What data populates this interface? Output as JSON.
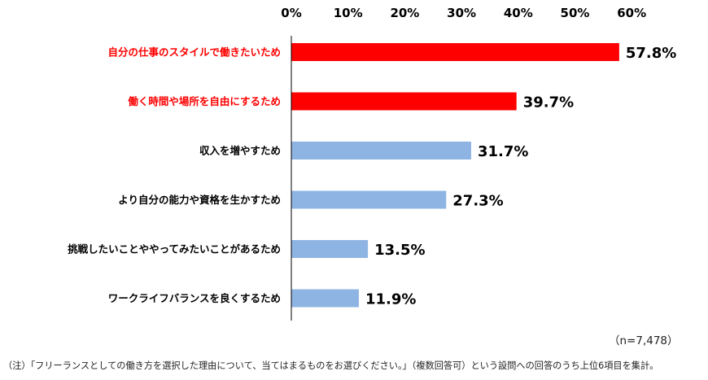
{
  "chart_data": {
    "type": "bar",
    "orientation": "horizontal",
    "categories": [
      "自分の仕事のスタイルで働きたいため",
      "働く時間や場所を自由にするため",
      "収入を増やすため",
      "より自分の能力や資格を生かすため",
      "挑戦したいことややってみたいことがあるため",
      "ワークライフバランスを良くするため"
    ],
    "values": [
      57.8,
      39.7,
      31.7,
      27.3,
      13.5,
      11.9
    ],
    "value_labels": [
      "57.8%",
      "39.7%",
      "31.7%",
      "27.3%",
      "13.5%",
      "11.9%"
    ],
    "highlighted": [
      true,
      true,
      false,
      false,
      false,
      false
    ],
    "xlim": [
      0,
      60
    ],
    "xticks": [
      0,
      10,
      20,
      30,
      40,
      50,
      60
    ],
    "xtick_labels": [
      "0%",
      "10%",
      "20%",
      "30%",
      "40%",
      "50%",
      "60%"
    ],
    "axis_position": "top",
    "grid": false,
    "colors": {
      "highlight_bar": "#ff0000",
      "normal_bar": "#8eb4e3",
      "highlight_label": "#ff0000",
      "normal_label": "#000000",
      "axis": "#000000"
    }
  },
  "sample_note": "（n=7,478）",
  "footnote": "（注）「フリーランスとしての働き方を選択した理由について、当てはまるものをお選びください。」（複数回答可）という設問への回答のうち上位6項目を集計。"
}
